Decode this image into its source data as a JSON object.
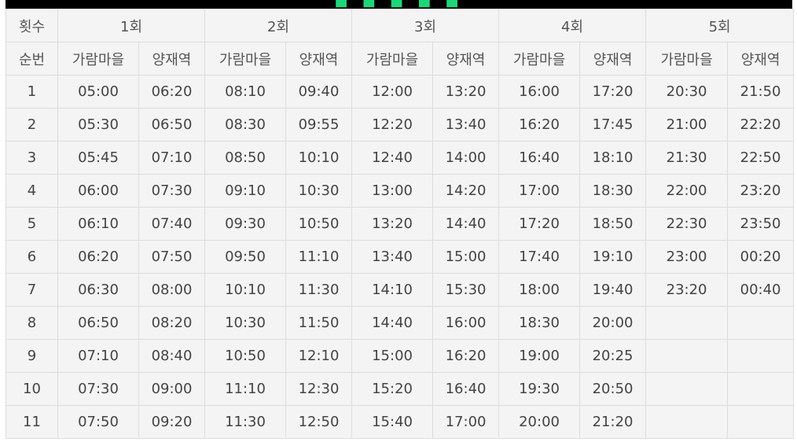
{
  "header": {
    "corner_label": "횟수",
    "order_label": "순번",
    "rounds": [
      "1회",
      "2회",
      "3회",
      "4회",
      "5회"
    ],
    "stops": [
      "가람마을",
      "양재역"
    ]
  },
  "rows": [
    {
      "no": "1",
      "times": [
        "05:00",
        "06:20",
        "08:10",
        "09:40",
        "12:00",
        "13:20",
        "16:00",
        "17:20",
        "20:30",
        "21:50"
      ]
    },
    {
      "no": "2",
      "times": [
        "05:30",
        "06:50",
        "08:30",
        "09:55",
        "12:20",
        "13:40",
        "16:20",
        "17:45",
        "21:00",
        "22:20"
      ]
    },
    {
      "no": "3",
      "times": [
        "05:45",
        "07:10",
        "08:50",
        "10:10",
        "12:40",
        "14:00",
        "16:40",
        "18:10",
        "21:30",
        "22:50"
      ]
    },
    {
      "no": "4",
      "times": [
        "06:00",
        "07:30",
        "09:10",
        "10:30",
        "13:00",
        "14:20",
        "17:00",
        "18:30",
        "22:00",
        "23:20"
      ]
    },
    {
      "no": "5",
      "times": [
        "06:10",
        "07:40",
        "09:30",
        "10:50",
        "13:20",
        "14:40",
        "17:20",
        "18:50",
        "22:30",
        "23:50"
      ]
    },
    {
      "no": "6",
      "times": [
        "06:20",
        "07:50",
        "09:50",
        "11:10",
        "13:40",
        "15:00",
        "17:40",
        "19:10",
        "23:00",
        "00:20"
      ]
    },
    {
      "no": "7",
      "times": [
        "06:30",
        "08:00",
        "10:10",
        "11:30",
        "14:10",
        "15:30",
        "18:00",
        "19:40",
        "23:20",
        "00:40"
      ]
    },
    {
      "no": "8",
      "times": [
        "06:50",
        "08:20",
        "10:30",
        "11:50",
        "14:40",
        "16:00",
        "18:30",
        "20:00",
        "",
        ""
      ]
    },
    {
      "no": "9",
      "times": [
        "07:10",
        "08:40",
        "10:50",
        "12:10",
        "15:00",
        "16:20",
        "19:00",
        "20:25",
        "",
        ""
      ]
    },
    {
      "no": "10",
      "times": [
        "07:30",
        "09:00",
        "11:10",
        "12:30",
        "15:20",
        "16:40",
        "19:30",
        "20:50",
        "",
        ""
      ]
    },
    {
      "no": "11",
      "times": [
        "07:50",
        "09:20",
        "11:30",
        "12:50",
        "15:40",
        "17:00",
        "20:00",
        "21:20",
        "",
        ""
      ]
    }
  ]
}
